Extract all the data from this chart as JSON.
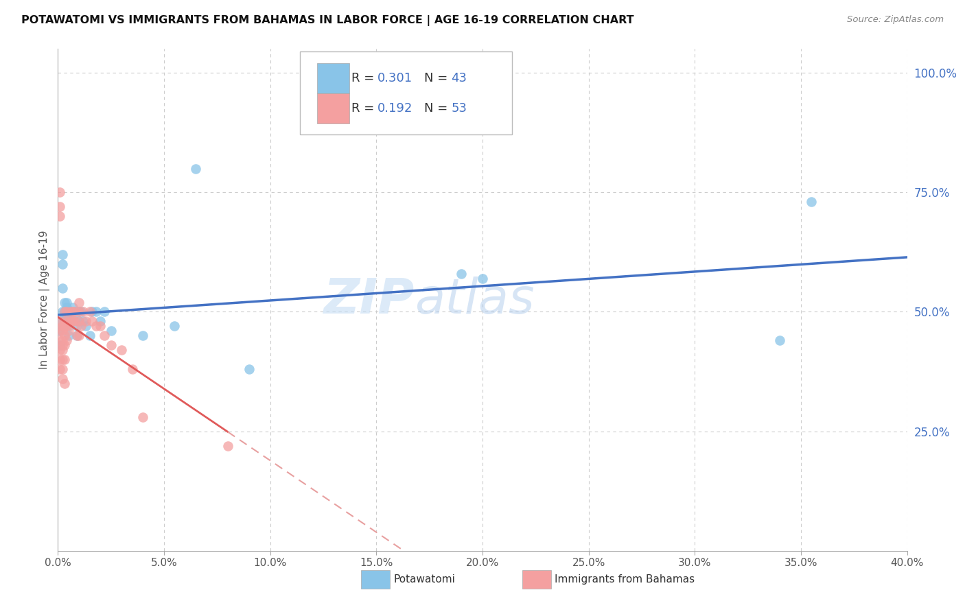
{
  "title": "POTAWATOMI VS IMMIGRANTS FROM BAHAMAS IN LABOR FORCE | AGE 16-19 CORRELATION CHART",
  "source": "Source: ZipAtlas.com",
  "ylabel": "In Labor Force | Age 16-19",
  "x_min": 0.0,
  "x_max": 0.4,
  "y_min": 0.0,
  "y_max": 1.05,
  "legend_r1": "0.301",
  "legend_n1": "43",
  "legend_r2": "0.192",
  "legend_n2": "53",
  "color_blue": "#89c4e8",
  "color_pink": "#f4a0a0",
  "color_blue_line": "#4472c4",
  "color_pink_line": "#e05a5a",
  "color_pink_dash": "#e8a0a0",
  "watermark_zip": "ZIP",
  "watermark_atlas": "atlas",
  "potawatomi_x": [
    0.001,
    0.001,
    0.001,
    0.002,
    0.002,
    0.002,
    0.002,
    0.003,
    0.003,
    0.003,
    0.004,
    0.004,
    0.004,
    0.005,
    0.005,
    0.005,
    0.005,
    0.006,
    0.006,
    0.007,
    0.007,
    0.008,
    0.009,
    0.009,
    0.01,
    0.01,
    0.011,
    0.012,
    0.013,
    0.015,
    0.016,
    0.018,
    0.02,
    0.022,
    0.025,
    0.04,
    0.055,
    0.065,
    0.09,
    0.19,
    0.2,
    0.34,
    0.355
  ],
  "potawatomi_y": [
    0.48,
    0.46,
    0.43,
    0.62,
    0.6,
    0.55,
    0.5,
    0.52,
    0.5,
    0.49,
    0.52,
    0.51,
    0.49,
    0.5,
    0.48,
    0.47,
    0.45,
    0.5,
    0.48,
    0.51,
    0.49,
    0.5,
    0.47,
    0.45,
    0.5,
    0.48,
    0.5,
    0.48,
    0.47,
    0.45,
    0.5,
    0.5,
    0.48,
    0.5,
    0.46,
    0.45,
    0.47,
    0.8,
    0.38,
    0.58,
    0.57,
    0.44,
    0.73
  ],
  "bahamas_x": [
    0.001,
    0.001,
    0.001,
    0.001,
    0.001,
    0.001,
    0.001,
    0.001,
    0.001,
    0.002,
    0.002,
    0.002,
    0.002,
    0.002,
    0.002,
    0.002,
    0.002,
    0.003,
    0.003,
    0.003,
    0.003,
    0.003,
    0.003,
    0.003,
    0.004,
    0.004,
    0.004,
    0.005,
    0.005,
    0.006,
    0.006,
    0.007,
    0.007,
    0.008,
    0.008,
    0.009,
    0.01,
    0.01,
    0.01,
    0.01,
    0.011,
    0.012,
    0.013,
    0.015,
    0.016,
    0.018,
    0.02,
    0.022,
    0.025,
    0.03,
    0.035,
    0.04,
    0.08
  ],
  "bahamas_y": [
    0.75,
    0.72,
    0.7,
    0.48,
    0.46,
    0.44,
    0.42,
    0.4,
    0.38,
    0.47,
    0.46,
    0.44,
    0.43,
    0.42,
    0.4,
    0.38,
    0.36,
    0.5,
    0.48,
    0.47,
    0.45,
    0.43,
    0.4,
    0.35,
    0.5,
    0.47,
    0.44,
    0.48,
    0.46,
    0.5,
    0.48,
    0.5,
    0.48,
    0.5,
    0.48,
    0.45,
    0.52,
    0.5,
    0.48,
    0.45,
    0.47,
    0.5,
    0.48,
    0.5,
    0.48,
    0.47,
    0.47,
    0.45,
    0.43,
    0.42,
    0.38,
    0.28,
    0.22
  ],
  "grid_color": "#cccccc",
  "background_color": "#ffffff",
  "x_ticks": [
    0.0,
    0.05,
    0.1,
    0.15,
    0.2,
    0.25,
    0.3,
    0.35,
    0.4
  ],
  "y_ticks_right": [
    0.25,
    0.5,
    0.75,
    1.0
  ],
  "y_tick_labels": [
    "25.0%",
    "50.0%",
    "75.0%",
    "100.0%"
  ],
  "x_tick_labels": [
    "0.0%",
    "5.0%",
    "10.0%",
    "15.0%",
    "20.0%",
    "25.0%",
    "30.0%",
    "35.0%",
    "40.0%"
  ]
}
